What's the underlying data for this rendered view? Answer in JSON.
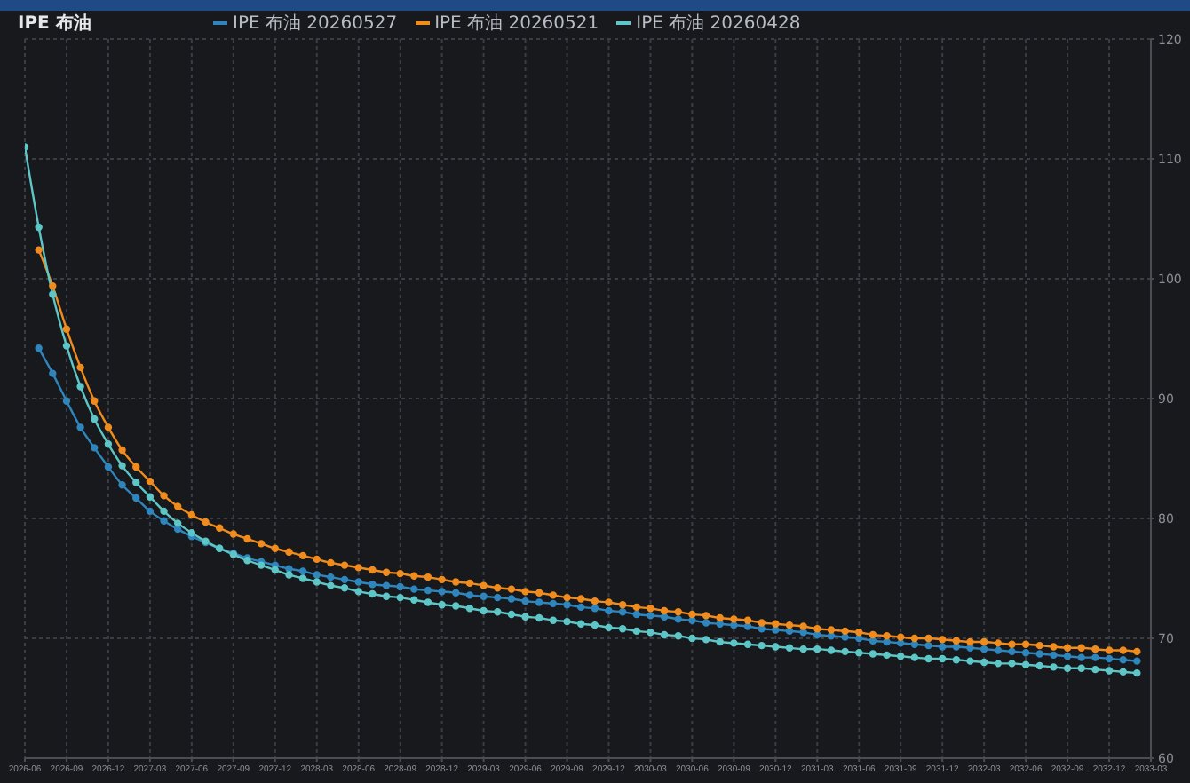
{
  "chart_data": {
    "type": "line",
    "title": "IPE 布油",
    "x": [
      "2026-06",
      "2026-07",
      "2026-08",
      "2026-09",
      "2026-10",
      "2026-11",
      "2026-12",
      "2027-01",
      "2027-02",
      "2027-03",
      "2027-04",
      "2027-05",
      "2027-06",
      "2027-07",
      "2027-08",
      "2027-09",
      "2027-10",
      "2027-11",
      "2027-12",
      "2028-01",
      "2028-02",
      "2028-03",
      "2028-04",
      "2028-05",
      "2028-06",
      "2028-07",
      "2028-08",
      "2028-09",
      "2028-10",
      "2028-11",
      "2028-12",
      "2029-01",
      "2029-02",
      "2029-03",
      "2029-04",
      "2029-05",
      "2029-06",
      "2029-07",
      "2029-08",
      "2029-09",
      "2029-10",
      "2029-11",
      "2029-12",
      "2030-01",
      "2030-02",
      "2030-03",
      "2030-04",
      "2030-05",
      "2030-06",
      "2030-07",
      "2030-08",
      "2030-09",
      "2030-10",
      "2030-11",
      "2030-12",
      "2031-01",
      "2031-02",
      "2031-03",
      "2031-04",
      "2031-05",
      "2031-06",
      "2031-07",
      "2031-08",
      "2031-09",
      "2031-10",
      "2031-11",
      "2031-12",
      "2032-01",
      "2032-02",
      "2032-03",
      "2032-04",
      "2032-05",
      "2032-06",
      "2032-07",
      "2032-08",
      "2032-09",
      "2032-10",
      "2032-11",
      "2032-12",
      "2033-01",
      "2033-02"
    ],
    "series": [
      {
        "name": "IPE 布油 20260527",
        "color": "#2f86bd",
        "values": [
          null,
          94.2,
          92.1,
          89.8,
          87.6,
          85.9,
          84.3,
          82.8,
          81.7,
          80.6,
          79.8,
          79.1,
          78.5,
          78.0,
          77.5,
          77.1,
          76.7,
          76.4,
          76.1,
          75.8,
          75.6,
          75.3,
          75.1,
          74.9,
          74.7,
          74.5,
          74.4,
          74.3,
          74.1,
          74.0,
          73.9,
          73.8,
          73.6,
          73.5,
          73.4,
          73.3,
          73.1,
          73.0,
          72.9,
          72.8,
          72.6,
          72.5,
          72.3,
          72.2,
          72.0,
          71.9,
          71.8,
          71.6,
          71.5,
          71.3,
          71.2,
          71.1,
          71.0,
          70.8,
          70.7,
          70.6,
          70.5,
          70.3,
          70.2,
          70.1,
          70.0,
          69.8,
          69.7,
          69.6,
          69.5,
          69.4,
          69.3,
          69.3,
          69.2,
          69.1,
          69.0,
          68.9,
          68.8,
          68.7,
          68.6,
          68.5,
          68.4,
          68.4,
          68.3,
          68.2,
          68.1
        ]
      },
      {
        "name": "IPE 布油 20260521",
        "color": "#f08c1e",
        "values": [
          null,
          102.4,
          99.4,
          95.8,
          92.6,
          89.8,
          87.6,
          85.7,
          84.3,
          83.1,
          81.9,
          81.0,
          80.3,
          79.7,
          79.2,
          78.7,
          78.3,
          77.9,
          77.5,
          77.2,
          76.9,
          76.6,
          76.3,
          76.1,
          75.9,
          75.7,
          75.5,
          75.4,
          75.2,
          75.1,
          74.9,
          74.7,
          74.6,
          74.4,
          74.2,
          74.1,
          73.9,
          73.8,
          73.6,
          73.4,
          73.3,
          73.1,
          73.0,
          72.8,
          72.6,
          72.5,
          72.3,
          72.2,
          72.0,
          71.9,
          71.7,
          71.6,
          71.5,
          71.3,
          71.2,
          71.1,
          71.0,
          70.8,
          70.7,
          70.6,
          70.5,
          70.3,
          70.2,
          70.1,
          70.0,
          70.0,
          69.9,
          69.8,
          69.7,
          69.7,
          69.6,
          69.5,
          69.5,
          69.4,
          69.3,
          69.2,
          69.2,
          69.1,
          69.0,
          69.0,
          68.9
        ]
      },
      {
        "name": "IPE 布油 20260428",
        "color": "#5ec6c6",
        "values": [
          111.0,
          104.3,
          98.7,
          94.4,
          91.0,
          88.3,
          86.2,
          84.4,
          83.0,
          81.8,
          80.6,
          79.6,
          78.8,
          78.1,
          77.5,
          77.0,
          76.5,
          76.1,
          75.7,
          75.3,
          75.0,
          74.7,
          74.4,
          74.2,
          73.9,
          73.7,
          73.5,
          73.4,
          73.2,
          73.0,
          72.8,
          72.7,
          72.5,
          72.3,
          72.2,
          72.0,
          71.8,
          71.7,
          71.5,
          71.4,
          71.2,
          71.1,
          70.9,
          70.8,
          70.6,
          70.5,
          70.3,
          70.2,
          70.0,
          69.9,
          69.7,
          69.6,
          69.5,
          69.4,
          69.3,
          69.2,
          69.1,
          69.1,
          69.0,
          68.9,
          68.8,
          68.7,
          68.6,
          68.5,
          68.4,
          68.3,
          68.3,
          68.2,
          68.1,
          68.0,
          67.9,
          67.9,
          67.8,
          67.7,
          67.6,
          67.5,
          67.5,
          67.4,
          67.3,
          67.2,
          67.1
        ]
      }
    ],
    "xlim": [
      "2026-06",
      "2033-03"
    ],
    "xticks": [
      "2026-06",
      "2026-09",
      "2026-12",
      "2027-03",
      "2027-06",
      "2027-09",
      "2027-12",
      "2028-03",
      "2028-06",
      "2028-09",
      "2028-12",
      "2029-03",
      "2029-06",
      "2029-09",
      "2029-12",
      "2030-03",
      "2030-06",
      "2030-09",
      "2030-12",
      "2031-03",
      "2031-06",
      "2031-09",
      "2031-12",
      "2032-03",
      "2032-06",
      "2032-09",
      "2032-12",
      "2033-03"
    ],
    "ylim": [
      60,
      120
    ],
    "yticks": [
      60,
      70,
      80,
      90,
      100,
      110,
      120
    ],
    "grid": true,
    "legend": "top",
    "marker": "circle",
    "line_style": "solid"
  }
}
